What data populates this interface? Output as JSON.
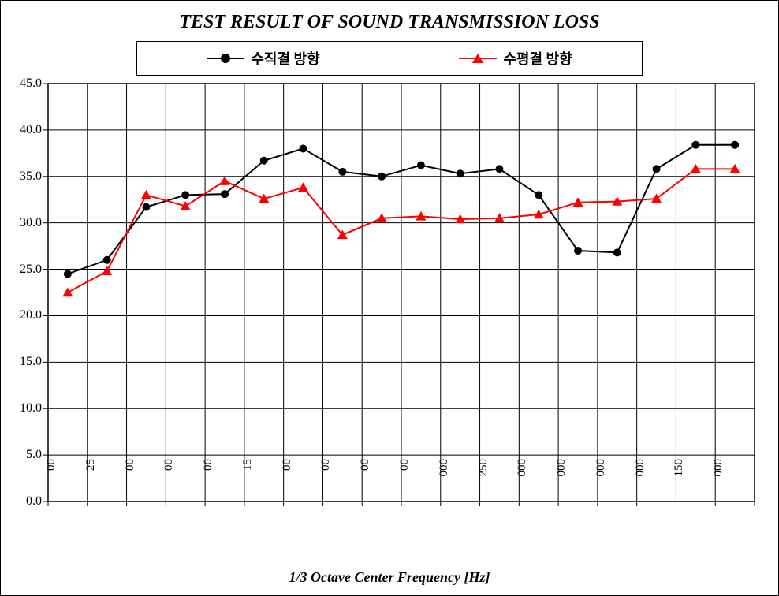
{
  "chart": {
    "type": "line",
    "title": "TEST RESULT OF SOUND TRANSMISSION LOSS",
    "title_fontsize": 24,
    "x_axis_title": "1/3 Octave Center Frequency [Hz]",
    "background_color": "#ffffff",
    "border_color": "#000000",
    "grid_color": "#000000",
    "ylim": [
      0.0,
      45.0
    ],
    "ytick_step": 5.0,
    "ytick_labels": [
      "0.0",
      "5.0",
      "10.0",
      "15.0",
      "20.0",
      "25.0",
      "30.0",
      "35.0",
      "40.0",
      "45.0"
    ],
    "x_categories_count": 19,
    "x_tick_labels": [
      "00",
      "25",
      "00",
      "00",
      "00",
      "15",
      "00",
      "00",
      "00",
      "00",
      "000",
      "250",
      "000",
      "000",
      "000",
      "000",
      "150",
      "000",
      ""
    ],
    "legend": {
      "series": [
        {
          "label": "수직결 방향",
          "color": "#000000",
          "marker": "circle"
        },
        {
          "label": "수평결 방향",
          "color": "#ff0000",
          "marker": "triangle"
        }
      ]
    },
    "series": [
      {
        "name": "수직결 방향",
        "color": "#000000",
        "line_width": 2,
        "marker": "circle",
        "marker_size": 10,
        "values": [
          24.5,
          26.0,
          31.7,
          33.0,
          33.1,
          36.7,
          38.0,
          35.5,
          35.0,
          36.2,
          35.3,
          35.8,
          33.0,
          27.0,
          26.8,
          35.8,
          38.4,
          38.4
        ]
      },
      {
        "name": "수평결 방향",
        "color": "#ff0000",
        "line_width": 2,
        "marker": "triangle",
        "marker_size": 11,
        "values": [
          22.5,
          24.8,
          33.0,
          31.8,
          34.5,
          32.6,
          33.8,
          28.7,
          30.5,
          30.7,
          30.4,
          30.5,
          30.9,
          32.2,
          32.3,
          32.6,
          35.8,
          35.8
        ]
      }
    ],
    "font_family": "Times New Roman",
    "tick_fontsize": 16,
    "axis_title_fontsize": 18
  }
}
